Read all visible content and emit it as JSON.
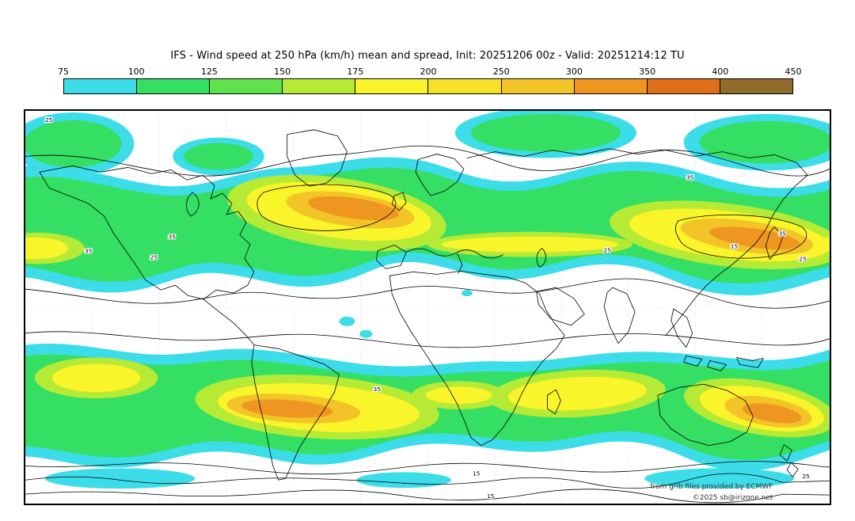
{
  "title": "IFS - Wind speed at 250 hPa (km/h) mean and spread, Init: 20251206 00z - Valid: 20251214:12 TU",
  "colorbar": {
    "tick_labels": [
      "75",
      "100",
      "125",
      "150",
      "175",
      "200",
      "250",
      "300",
      "350",
      "400",
      "450"
    ],
    "segment_colors": [
      "#3CDCE9",
      "#35DF63",
      "#60E24D",
      "#B5EA35",
      "#FAF42B",
      "#F6E02A",
      "#F2C427",
      "#EE961F",
      "#DF6F1B",
      "#8F6C2B"
    ]
  },
  "map": {
    "contour_labels": [
      "25",
      "35",
      "35",
      "25",
      "35",
      "15",
      "25",
      "25",
      "35",
      "35",
      "15",
      "25",
      "15"
    ],
    "attribution_line1": "from grib files provided by ECMWF",
    "attribution_line2": "©2025 sb@irizone.net"
  },
  "chart_data": {
    "type": "heatmap",
    "title": "IFS - Wind speed at 250 hPa (km/h) mean and spread, Init: 20251206 00z - Valid: 20251214:12 TU",
    "variable": "Wind speed at 250 hPa",
    "units": "km/h",
    "model": "IFS",
    "init_time": "20251206 00z",
    "valid_time": "20251214:12 TU",
    "color_scale_levels_kmh": [
      75,
      100,
      125,
      150,
      175,
      200,
      250,
      300,
      350,
      400,
      450
    ],
    "spread_contour_levels": [
      15,
      25,
      35
    ],
    "projection": "equirectangular world map",
    "features": "Northern and southern hemisphere jet streams shown as colored bands; strongest cores (orange, 300-350 km/h) over the North Atlantic, the North Pacific east of Japan, the southern Atlantic/Indian Ocean and the South Pacific"
  }
}
